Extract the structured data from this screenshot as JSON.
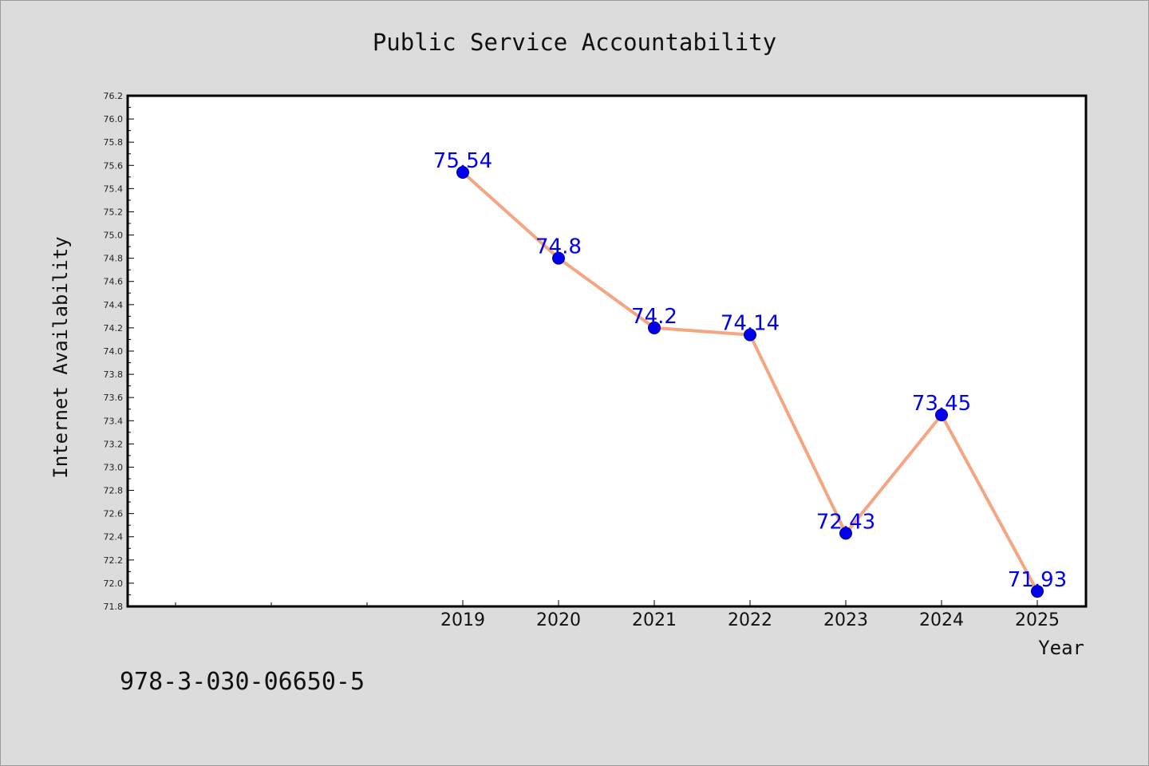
{
  "chart_data": {
    "type": "line",
    "title": "Public Service Accountability",
    "xlabel": "Year",
    "ylabel": "Internet Availability",
    "categories": [
      "2019",
      "2020",
      "2021",
      "2022",
      "2023",
      "2024",
      "2025"
    ],
    "series": [
      {
        "values": [
          75.54,
          74.8,
          74.2,
          74.14,
          72.43,
          73.45,
          71.93
        ]
      }
    ],
    "data_labels": [
      "75.54",
      "74.8",
      "74.2",
      "74.14",
      "72.43",
      "73.45",
      "71.93"
    ],
    "ylim": [
      71.8,
      76.2
    ],
    "y_ticks": [
      "71.8",
      "72.0",
      "72.2",
      "72.4",
      "72.6",
      "72.8",
      "73.0",
      "73.2",
      "73.4",
      "73.6",
      "73.8",
      "74.0",
      "74.2",
      "74.4",
      "74.6",
      "74.8",
      "75.0",
      "75.2",
      "75.4",
      "75.6",
      "75.8",
      "76.0",
      "76.2"
    ],
    "line_color": "#f4a582",
    "marker_color": "#0000ee",
    "label_color": "#0000ee",
    "grid": false
  },
  "footer": {
    "code": "978-3-030-06650-5"
  }
}
